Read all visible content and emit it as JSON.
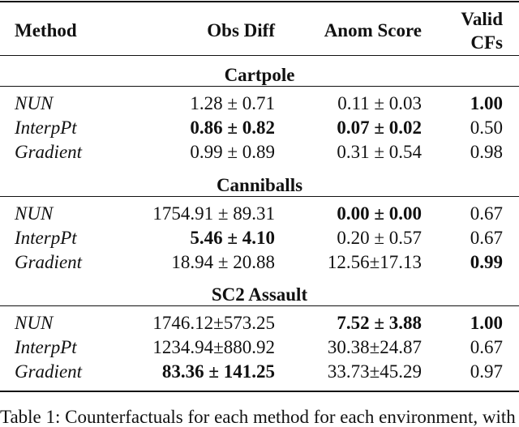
{
  "headers": [
    "Method",
    "Obs Diff",
    "Anom Score",
    "Valid",
    "CFs"
  ],
  "sections": [
    {
      "title": "Cartpole",
      "rows": [
        {
          "method": "NUN",
          "obs": "1.28 ± 0.71",
          "anom": "0.11 ± 0.03",
          "valid": "1.00",
          "bold": [
            false,
            false,
            true
          ]
        },
        {
          "method": "InterpPt",
          "obs": "0.86 ± 0.82",
          "anom": "0.07 ± 0.02",
          "valid": "0.50",
          "bold": [
            true,
            true,
            false
          ]
        },
        {
          "method": "Gradient",
          "obs": "0.99 ± 0.89",
          "anom": "0.31 ± 0.54",
          "valid": "0.98",
          "bold": [
            false,
            false,
            false
          ]
        }
      ]
    },
    {
      "title": "Canniballs",
      "rows": [
        {
          "method": "NUN",
          "obs": "1754.91 ± 89.31",
          "anom": "0.00 ± 0.00",
          "valid": "0.67",
          "bold": [
            false,
            true,
            false
          ]
        },
        {
          "method": "InterpPt",
          "obs": "5.46 ± 4.10",
          "anom": "0.20 ± 0.57",
          "valid": "0.67",
          "bold": [
            true,
            false,
            false
          ]
        },
        {
          "method": "Gradient",
          "obs": "18.94 ± 20.88",
          "anom": "12.56±17.13",
          "valid": "0.99",
          "bold": [
            false,
            false,
            true
          ]
        }
      ]
    },
    {
      "title": "SC2 Assault",
      "rows": [
        {
          "method": "NUN",
          "obs": "1746.12±573.25",
          "anom": "7.52 ± 3.88",
          "valid": "1.00",
          "bold": [
            false,
            true,
            true
          ]
        },
        {
          "method": "InterpPt",
          "obs": "1234.94±880.92",
          "anom": "30.38±24.87",
          "valid": "0.67",
          "bold": [
            false,
            false,
            false
          ]
        },
        {
          "method": "Gradient",
          "obs": "83.36 ± 141.25",
          "anom": "33.73±45.29",
          "valid": "0.97",
          "bold": [
            true,
            false,
            false
          ]
        }
      ]
    }
  ],
  "caption": "Table 1: Counterfactuals for each method for each environment, with"
}
